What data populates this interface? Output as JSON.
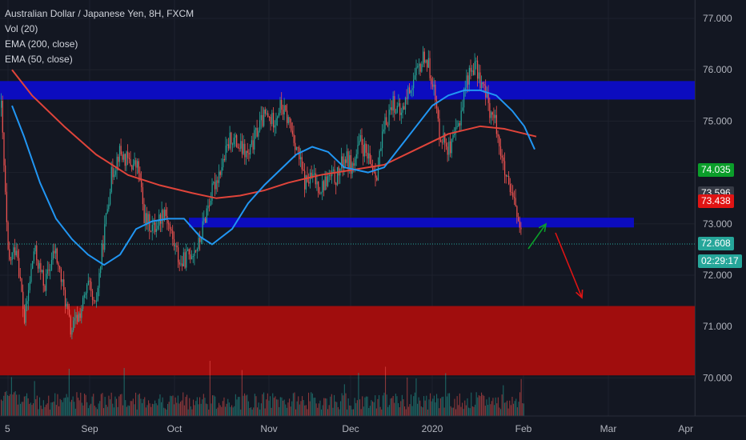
{
  "legend": {
    "title": "Australian Dollar / Japanese Yen, 8H, FXCM",
    "vol": "Vol (20)",
    "ema200": "EMA (200, close)",
    "ema50": "EMA (50, close)"
  },
  "price_tags": {
    "green": {
      "label": "74.035",
      "value": 74.035,
      "color": "#0b9e2a"
    },
    "gray": {
      "label": "73.596",
      "value": 73.596,
      "color": "#363a45"
    },
    "red": {
      "label": "73.438",
      "value": 73.438,
      "color": "#e01414"
    },
    "last": {
      "label": "72.608",
      "value": 72.608,
      "color": "#26a69a"
    },
    "countdown": {
      "label": "02:29:17",
      "color": "#26a69a"
    }
  },
  "chart_data": {
    "type": "candlestick",
    "title": "Australian Dollar / Japanese Yen, 8H, FXCM",
    "y_ticks": [
      "77.000",
      "76.000",
      "75.000",
      "74.000",
      "73.000",
      "72.000",
      "71.000",
      "70.000"
    ],
    "y_tick_values": [
      77,
      76,
      75,
      74,
      73,
      72,
      71,
      70
    ],
    "x_ticks": [
      "5",
      "Sep",
      "Oct",
      "Nov",
      "Dec",
      "2020",
      "Feb",
      "Mar",
      "Apr"
    ],
    "ylim": [
      69.25,
      77.25
    ],
    "price_path": [
      [
        0,
        75.6
      ],
      [
        10,
        72.2
      ],
      [
        20,
        72.6
      ],
      [
        30,
        71.1
      ],
      [
        42,
        72.5
      ],
      [
        55,
        71.8
      ],
      [
        68,
        72.5
      ],
      [
        80,
        71.6
      ],
      [
        88,
        70.9
      ],
      [
        100,
        71.3
      ],
      [
        110,
        71.8
      ],
      [
        118,
        71.3
      ],
      [
        128,
        72.6
      ],
      [
        138,
        73.9
      ],
      [
        148,
        74.4
      ],
      [
        160,
        74.2
      ],
      [
        172,
        74.1
      ],
      [
        180,
        73.1
      ],
      [
        192,
        72.9
      ],
      [
        205,
        73.3
      ],
      [
        215,
        72.7
      ],
      [
        225,
        72.2
      ],
      [
        235,
        72.4
      ],
      [
        248,
        72.6
      ],
      [
        258,
        73.3
      ],
      [
        268,
        73.8
      ],
      [
        278,
        74.2
      ],
      [
        288,
        74.7
      ],
      [
        298,
        74.5
      ],
      [
        310,
        74.3
      ],
      [
        320,
        74.8
      ],
      [
        330,
        75.1
      ],
      [
        340,
        75.0
      ],
      [
        350,
        75.3
      ],
      [
        360,
        75.0
      ],
      [
        370,
        74.5
      ],
      [
        380,
        73.8
      ],
      [
        390,
        73.9
      ],
      [
        400,
        73.7
      ],
      [
        410,
        73.9
      ],
      [
        420,
        73.9
      ],
      [
        430,
        74.3
      ],
      [
        440,
        74.1
      ],
      [
        450,
        74.6
      ],
      [
        460,
        74.2
      ],
      [
        470,
        74.0
      ],
      [
        480,
        74.9
      ],
      [
        490,
        75.4
      ],
      [
        500,
        75.1
      ],
      [
        510,
        75.6
      ],
      [
        520,
        75.9
      ],
      [
        530,
        76.3
      ],
      [
        540,
        75.8
      ],
      [
        548,
        74.8
      ],
      [
        556,
        74.6
      ],
      [
        562,
        74.4
      ],
      [
        572,
        74.9
      ],
      [
        582,
        75.8
      ],
      [
        592,
        76.1
      ],
      [
        602,
        75.7
      ],
      [
        612,
        75.2
      ],
      [
        620,
        74.9
      ],
      [
        628,
        74.1
      ],
      [
        636,
        73.6
      ],
      [
        644,
        73.3
      ],
      [
        652,
        72.6
      ]
    ],
    "ema200": [
      [
        15,
        76.0
      ],
      [
        40,
        75.5
      ],
      [
        80,
        74.9
      ],
      [
        120,
        74.35
      ],
      [
        160,
        73.95
      ],
      [
        200,
        73.75
      ],
      [
        240,
        73.6
      ],
      [
        270,
        73.5
      ],
      [
        300,
        73.55
      ],
      [
        330,
        73.65
      ],
      [
        360,
        73.8
      ],
      [
        400,
        73.95
      ],
      [
        440,
        74.05
      ],
      [
        480,
        74.15
      ],
      [
        520,
        74.45
      ],
      [
        560,
        74.75
      ],
      [
        600,
        74.9
      ],
      [
        630,
        74.85
      ],
      [
        670,
        74.7
      ]
    ],
    "ema50": [
      [
        15,
        75.3
      ],
      [
        30,
        74.7
      ],
      [
        50,
        73.8
      ],
      [
        70,
        73.1
      ],
      [
        90,
        72.7
      ],
      [
        110,
        72.4
      ],
      [
        130,
        72.2
      ],
      [
        150,
        72.4
      ],
      [
        170,
        72.9
      ],
      [
        190,
        73.05
      ],
      [
        210,
        73.1
      ],
      [
        230,
        73.1
      ],
      [
        250,
        72.75
      ],
      [
        265,
        72.6
      ],
      [
        290,
        72.9
      ],
      [
        310,
        73.4
      ],
      [
        330,
        73.75
      ],
      [
        350,
        74.05
      ],
      [
        370,
        74.35
      ],
      [
        390,
        74.5
      ],
      [
        410,
        74.4
      ],
      [
        430,
        74.1
      ],
      [
        460,
        74.0
      ],
      [
        480,
        74.1
      ],
      [
        500,
        74.5
      ],
      [
        520,
        74.9
      ],
      [
        540,
        75.3
      ],
      [
        560,
        75.5
      ],
      [
        580,
        75.6
      ],
      [
        600,
        75.6
      ],
      [
        620,
        75.5
      ],
      [
        640,
        75.2
      ],
      [
        655,
        74.9
      ],
      [
        668,
        74.45
      ]
    ],
    "zones": [
      {
        "name": "upper-resistance-zone",
        "color": "#0c0cbf",
        "y_top": 75.78,
        "y_bottom": 75.42,
        "x_start": 0,
        "x_end": 868
      },
      {
        "name": "middle-support-zone",
        "color": "#0c0cbf",
        "y_top": 73.12,
        "y_bottom": 72.93,
        "x_start": 236,
        "x_end": 792
      },
      {
        "name": "lower-demand-zone",
        "color": "#a00d0d",
        "y_top": 71.4,
        "y_bottom": 70.05,
        "x_start": 0,
        "x_end": 868
      }
    ],
    "current_price": 72.608,
    "arrows": [
      {
        "name": "up-arrow",
        "color": "#0b9e2a",
        "direction": "up"
      },
      {
        "name": "down-arrow",
        "color": "#e01414",
        "direction": "down"
      }
    ],
    "volume": {
      "label": "Vol (20)",
      "up_color": "#26a69a",
      "down_color": "#ef5350"
    }
  }
}
